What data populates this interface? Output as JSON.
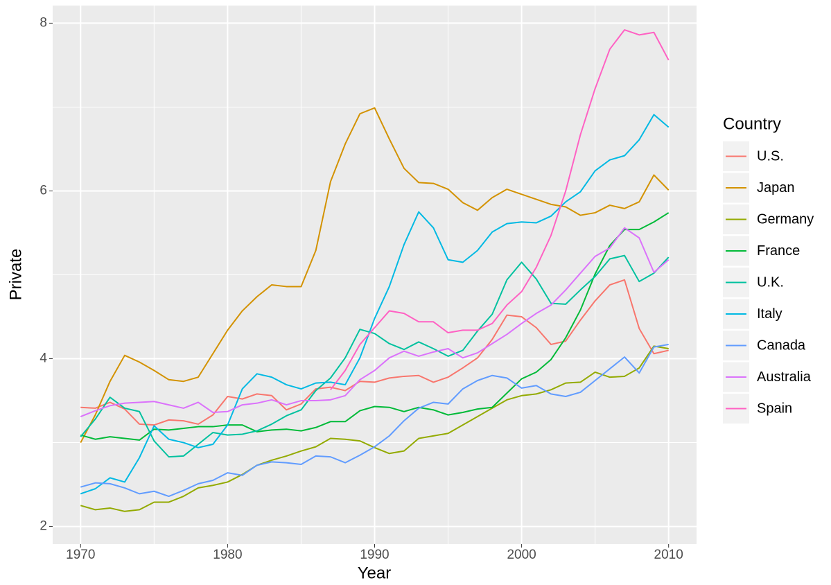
{
  "chart_data": {
    "type": "line",
    "x_label": "Year",
    "y_label": "Private",
    "legend_title": "Country",
    "x": [
      1970,
      1971,
      1972,
      1973,
      1974,
      1975,
      1976,
      1977,
      1978,
      1979,
      1980,
      1981,
      1982,
      1983,
      1984,
      1985,
      1986,
      1987,
      1988,
      1989,
      1990,
      1991,
      1992,
      1993,
      1994,
      1995,
      1996,
      1997,
      1998,
      1999,
      2000,
      2001,
      2002,
      2003,
      2004,
      2005,
      2006,
      2007,
      2008,
      2009,
      2010
    ],
    "xlim": [
      1968.1,
      2011.9
    ],
    "xticks": [
      1970,
      1980,
      1990,
      2000,
      2010
    ],
    "ylim": [
      1.79,
      8.21
    ],
    "yticks": [
      2,
      4,
      6,
      8
    ],
    "grid": true,
    "legend_position": "right",
    "series": [
      {
        "name": "U.S.",
        "color": "#F8766D",
        "values": [
          3.42,
          3.41,
          3.48,
          3.4,
          3.22,
          3.21,
          3.27,
          3.26,
          3.22,
          3.33,
          3.55,
          3.52,
          3.58,
          3.56,
          3.39,
          3.46,
          3.64,
          3.66,
          3.62,
          3.73,
          3.72,
          3.77,
          3.79,
          3.8,
          3.72,
          3.78,
          3.89,
          4.01,
          4.23,
          4.52,
          4.5,
          4.37,
          4.17,
          4.21,
          4.46,
          4.69,
          4.88,
          4.94,
          4.36,
          4.06,
          4.1
        ]
      },
      {
        "name": "Japan",
        "color": "#D39200",
        "values": [
          3.0,
          3.33,
          3.73,
          4.04,
          3.96,
          3.86,
          3.75,
          3.73,
          3.78,
          4.06,
          4.34,
          4.57,
          4.74,
          4.88,
          4.86,
          4.86,
          5.29,
          6.11,
          6.56,
          6.92,
          6.99,
          6.62,
          6.27,
          6.1,
          6.09,
          6.02,
          5.86,
          5.77,
          5.92,
          6.02,
          5.96,
          5.9,
          5.84,
          5.81,
          5.71,
          5.74,
          5.83,
          5.79,
          5.87,
          6.19,
          6.01
        ]
      },
      {
        "name": "Germany",
        "color": "#93AA00",
        "values": [
          2.25,
          2.2,
          2.22,
          2.18,
          2.2,
          2.29,
          2.29,
          2.36,
          2.46,
          2.49,
          2.53,
          2.62,
          2.73,
          2.79,
          2.84,
          2.9,
          2.95,
          3.05,
          3.04,
          3.02,
          2.94,
          2.87,
          2.9,
          3.05,
          3.08,
          3.11,
          3.21,
          3.31,
          3.41,
          3.51,
          3.56,
          3.58,
          3.63,
          3.71,
          3.72,
          3.84,
          3.78,
          3.79,
          3.89,
          4.15,
          4.12
        ]
      },
      {
        "name": "France",
        "color": "#00BA38",
        "values": [
          3.09,
          3.04,
          3.07,
          3.05,
          3.03,
          3.16,
          3.15,
          3.17,
          3.19,
          3.19,
          3.21,
          3.21,
          3.13,
          3.15,
          3.16,
          3.14,
          3.18,
          3.25,
          3.25,
          3.38,
          3.43,
          3.42,
          3.37,
          3.42,
          3.39,
          3.33,
          3.36,
          3.4,
          3.42,
          3.59,
          3.76,
          3.84,
          3.99,
          4.25,
          4.58,
          5.01,
          5.35,
          5.54,
          5.54,
          5.63,
          5.74
        ]
      },
      {
        "name": "U.K.",
        "color": "#00C19F",
        "values": [
          3.07,
          3.28,
          3.54,
          3.41,
          3.37,
          3.02,
          2.83,
          2.84,
          2.98,
          3.12,
          3.09,
          3.1,
          3.14,
          3.22,
          3.32,
          3.39,
          3.62,
          3.77,
          4.01,
          4.35,
          4.3,
          4.18,
          4.11,
          4.2,
          4.12,
          4.03,
          4.1,
          4.33,
          4.53,
          4.94,
          5.15,
          4.95,
          4.66,
          4.65,
          4.82,
          4.98,
          5.19,
          5.23,
          4.92,
          5.02,
          5.21
        ]
      },
      {
        "name": "Italy",
        "color": "#00B9E3",
        "values": [
          2.39,
          2.45,
          2.58,
          2.53,
          2.82,
          3.2,
          3.04,
          3.0,
          2.94,
          2.98,
          3.21,
          3.64,
          3.82,
          3.78,
          3.69,
          3.64,
          3.71,
          3.72,
          3.69,
          4.01,
          4.48,
          4.86,
          5.36,
          5.75,
          5.56,
          5.18,
          5.15,
          5.29,
          5.51,
          5.61,
          5.63,
          5.62,
          5.7,
          5.87,
          5.99,
          6.24,
          6.37,
          6.42,
          6.61,
          6.91,
          6.76
        ]
      },
      {
        "name": "Canada",
        "color": "#619CFF",
        "values": [
          2.47,
          2.52,
          2.51,
          2.46,
          2.39,
          2.42,
          2.36,
          2.43,
          2.51,
          2.55,
          2.64,
          2.61,
          2.73,
          2.77,
          2.76,
          2.74,
          2.84,
          2.83,
          2.76,
          2.85,
          2.95,
          3.08,
          3.26,
          3.41,
          3.48,
          3.46,
          3.64,
          3.74,
          3.8,
          3.77,
          3.65,
          3.68,
          3.58,
          3.55,
          3.6,
          3.74,
          3.88,
          4.02,
          3.83,
          4.14,
          4.17
        ]
      },
      {
        "name": "Australia",
        "color": "#DB72FB",
        "values": [
          3.31,
          3.38,
          3.44,
          3.47,
          3.48,
          3.49,
          3.45,
          3.41,
          3.48,
          3.36,
          3.37,
          3.45,
          3.47,
          3.51,
          3.45,
          3.5,
          3.5,
          3.51,
          3.56,
          3.75,
          3.86,
          4.01,
          4.09,
          4.03,
          4.08,
          4.12,
          4.01,
          4.07,
          4.18,
          4.29,
          4.42,
          4.54,
          4.64,
          4.82,
          5.02,
          5.22,
          5.32,
          5.56,
          5.44,
          5.03,
          5.18
        ]
      },
      {
        "name": "Spain",
        "color": "#FF61C3",
        "values": [
          null,
          null,
          null,
          null,
          null,
          null,
          null,
          null,
          null,
          null,
          null,
          null,
          null,
          null,
          null,
          null,
          null,
          3.63,
          3.86,
          4.17,
          4.37,
          4.57,
          4.54,
          4.44,
          4.44,
          4.31,
          4.34,
          4.34,
          4.42,
          4.64,
          4.8,
          5.09,
          5.47,
          6.0,
          6.67,
          7.22,
          7.69,
          7.92,
          7.86,
          7.89,
          7.56
        ]
      }
    ]
  }
}
